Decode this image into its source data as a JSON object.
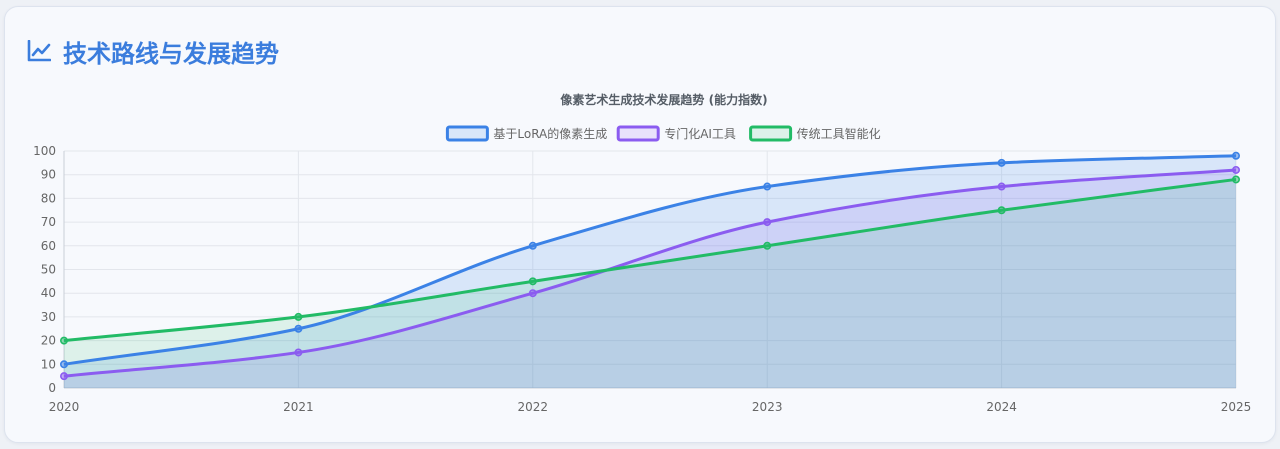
{
  "section": {
    "title": "技术路线与发展趋势",
    "icon": "line-chart-icon"
  },
  "chart_data": {
    "type": "line",
    "title": "像素艺术生成技术发展趋势 (能力指数)",
    "categories": [
      "2020",
      "2021",
      "2022",
      "2023",
      "2024",
      "2025"
    ],
    "series": [
      {
        "name": "基于LoRA的像素生成",
        "values": [
          10,
          25,
          60,
          85,
          95,
          98
        ],
        "color": "#3b82e6",
        "fill": "rgba(59,130,230,0.16)"
      },
      {
        "name": "专门化AI工具",
        "values": [
          5,
          15,
          40,
          70,
          85,
          92
        ],
        "color": "#8b5cf0",
        "fill": "rgba(139,92,240,0.14)"
      },
      {
        "name": "传统工具智能化",
        "values": [
          20,
          30,
          45,
          60,
          75,
          88
        ],
        "color": "#22bb66",
        "fill": "rgba(34,187,102,0.12)"
      }
    ],
    "yticks": [
      0,
      10,
      20,
      30,
      40,
      50,
      60,
      70,
      80,
      90,
      100
    ],
    "ylim": [
      0,
      100
    ],
    "grid": true,
    "legend_position": "top-center",
    "smooth": true,
    "filled": true
  }
}
